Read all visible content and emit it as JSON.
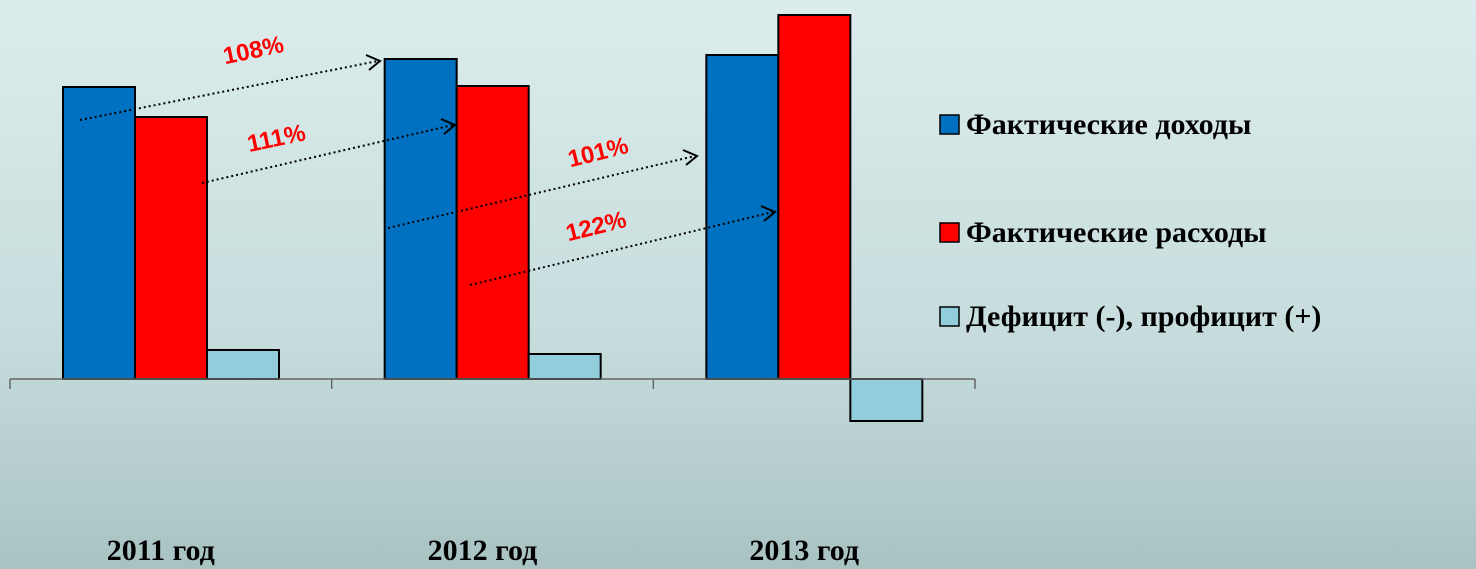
{
  "chart_data": {
    "type": "bar",
    "categories": [
      "2011 год",
      "2012 год",
      "2013 год"
    ],
    "series": [
      {
        "name": "Фактические доходы",
        "color": "#0070c0",
        "values": [
          292,
          320,
          324
        ]
      },
      {
        "name": "Фактические расходы",
        "color": "#ff0000",
        "values": [
          262,
          293,
          364
        ]
      },
      {
        "name": "Дефицит (-), профицит (+)",
        "color": "#92cddc",
        "values": [
          29,
          25,
          -42
        ]
      }
    ],
    "ylim": [
      -190,
      379
    ],
    "annotations": [
      "108%",
      "111%",
      "101%",
      "122%"
    ]
  }
}
